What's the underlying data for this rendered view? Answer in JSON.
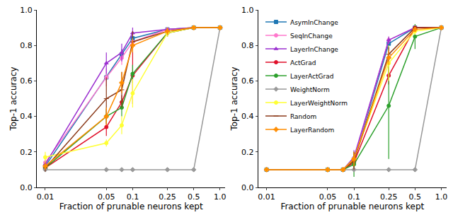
{
  "chart_data": [
    {
      "type": "line",
      "x_label": "Fraction of prunable neurons kept",
      "y_label": "Top-1 accuracy",
      "log": "x",
      "x": [
        0.01,
        0.05,
        0.075,
        0.1,
        0.25,
        0.5,
        1.0
      ],
      "xlim": [
        0.008,
        1.15
      ],
      "xticks": [
        0.01,
        0.05,
        0.1,
        0.25,
        0.5,
        {
          "value": 1,
          "label": "1.0"
        }
      ],
      "ylim": [
        0,
        1
      ],
      "yticks": [
        {
          "value": 0,
          "label": "0.0"
        },
        0.2,
        0.4,
        0.6,
        0.8,
        {
          "value": 1,
          "label": "1.0"
        }
      ],
      "series": [
        {
          "name": "AsymInChange",
          "color": "#1f77b4",
          "marker": "square",
          "values": [
            0.12,
            0.62,
            0.75,
            0.84,
            0.89,
            0.9,
            0.9
          ],
          "errors": [
            0.02,
            0.02,
            0.03,
            0.03,
            0.01,
            0.01,
            0
          ]
        },
        {
          "name": "SeqInChange",
          "color": "#ff77cc",
          "marker": "circle",
          "values": [
            0.14,
            0.62,
            0.73,
            0.82,
            0.89,
            0.9,
            0.9
          ],
          "errors": [
            0.02,
            0.05,
            0.04,
            0.03,
            0.01,
            0.01,
            0
          ]
        },
        {
          "name": "LayerInChange",
          "color": "#9b30d0",
          "marker": "triangle-up",
          "values": [
            0.13,
            0.7,
            0.76,
            0.87,
            0.89,
            0.9,
            0.9
          ],
          "errors": [
            0.02,
            0.06,
            0.05,
            0.03,
            0.01,
            0.01,
            0
          ]
        },
        {
          "name": "ActGrad",
          "color": "#e0102a",
          "marker": "circle",
          "values": [
            0.11,
            0.34,
            0.48,
            0.63,
            0.87,
            0.9,
            0.9
          ],
          "errors": [
            0.02,
            0.05,
            0.04,
            0.16,
            0.02,
            0.01,
            0
          ]
        },
        {
          "name": "LayerActGrad",
          "color": "#2ca02c",
          "marker": "circle",
          "values": [
            0.11,
            0.4,
            0.45,
            0.64,
            0.87,
            0.9,
            0.9
          ],
          "errors": [
            0.02,
            0.04,
            0.05,
            0.05,
            0.02,
            0.01,
            0
          ]
        },
        {
          "name": "WeightNorm",
          "color": "#999999",
          "marker": "diamond",
          "values": [
            0.1,
            0.1,
            0.1,
            0.1,
            0.1,
            0.1,
            0.9
          ],
          "errors": [
            0,
            0,
            0,
            0,
            0,
            0,
            0
          ]
        },
        {
          "name": "LayerWeightNorm",
          "color": "#ffff33",
          "marker": "circle",
          "values": [
            0.17,
            0.25,
            0.35,
            0.53,
            0.87,
            0.9,
            0.9
          ],
          "errors": [
            0.03,
            0.02,
            0.05,
            0.08,
            0.02,
            0.01,
            0
          ]
        },
        {
          "name": "Random",
          "color": "#8b3a1a",
          "marker": "line-ew",
          "values": [
            0.11,
            0.5,
            0.55,
            0.82,
            0.88,
            0.9,
            0.9
          ],
          "errors": [
            0.02,
            0.12,
            0.1,
            0.06,
            0.02,
            0.01,
            0
          ]
        },
        {
          "name": "LayerRandom",
          "color": "#ff8c00",
          "marker": "cross",
          "values": [
            0.12,
            0.4,
            0.59,
            0.8,
            0.88,
            0.9,
            0.9
          ],
          "errors": [
            0.02,
            0.05,
            0.06,
            0.04,
            0.02,
            0.01,
            0
          ]
        }
      ]
    },
    {
      "type": "line",
      "x_label": "Fraction of prunable neurons kept",
      "y_label": "Top-1 accuracy",
      "log": "x",
      "legend": "upper left",
      "x": [
        0.01,
        0.05,
        0.075,
        0.1,
        0.25,
        0.5,
        1.0
      ],
      "xlim": [
        0.008,
        1.15
      ],
      "xticks": [
        0.01,
        0.05,
        0.1,
        0.25,
        0.5,
        {
          "value": 1,
          "label": "1.0"
        }
      ],
      "ylim": [
        0,
        1
      ],
      "yticks": [
        {
          "value": 0,
          "label": "0.0"
        },
        0.2,
        0.4,
        0.6,
        0.8,
        {
          "value": 1,
          "label": "1.0"
        }
      ],
      "series": [
        {
          "name": "AsymInChange",
          "color": "#1f77b4",
          "marker": "square",
          "values": [
            0.1,
            0.1,
            0.1,
            0.15,
            0.81,
            0.9,
            0.9
          ],
          "errors": [
            0.01,
            0.01,
            0.01,
            0.04,
            0.03,
            0.01,
            0
          ]
        },
        {
          "name": "SeqInChange",
          "color": "#ff77cc",
          "marker": "circle",
          "values": [
            0.1,
            0.1,
            0.1,
            0.16,
            0.83,
            0.9,
            0.9
          ],
          "errors": [
            0.01,
            0.01,
            0.01,
            0.04,
            0.02,
            0.01,
            0
          ]
        },
        {
          "name": "LayerInChange",
          "color": "#9b30d0",
          "marker": "triangle-up",
          "values": [
            0.1,
            0.1,
            0.1,
            0.17,
            0.83,
            0.9,
            0.9
          ],
          "errors": [
            0.01,
            0.01,
            0.01,
            0.04,
            0.02,
            0.01,
            0
          ]
        },
        {
          "name": "ActGrad",
          "color": "#e0102a",
          "marker": "circle",
          "values": [
            0.1,
            0.1,
            0.1,
            0.14,
            0.63,
            0.9,
            0.9
          ],
          "errors": [
            0.01,
            0.01,
            0.01,
            0.05,
            0.05,
            0.01,
            0
          ]
        },
        {
          "name": "LayerActGrad",
          "color": "#2ca02c",
          "marker": "circle",
          "values": [
            0.1,
            0.1,
            0.1,
            0.13,
            0.46,
            0.85,
            0.9
          ],
          "errors": [
            0.01,
            0.01,
            0.01,
            0.07,
            0.3,
            0.07,
            0
          ]
        },
        {
          "name": "WeightNorm",
          "color": "#999999",
          "marker": "diamond",
          "values": [
            0.1,
            0.1,
            0.1,
            0.1,
            0.1,
            0.1,
            0.9
          ],
          "errors": [
            0,
            0,
            0,
            0,
            0,
            0,
            0
          ]
        },
        {
          "name": "LayerWeightNorm",
          "color": "#ffff33",
          "marker": "circle",
          "values": [
            0.1,
            0.1,
            0.1,
            0.16,
            0.7,
            0.88,
            0.9
          ],
          "errors": [
            0.01,
            0.01,
            0.01,
            0.04,
            0.1,
            0.02,
            0
          ]
        },
        {
          "name": "Random",
          "color": "#8b3a1a",
          "marker": "line-ew",
          "values": [
            0.1,
            0.1,
            0.1,
            0.15,
            0.75,
            0.9,
            0.9
          ],
          "errors": [
            0.01,
            0.01,
            0.01,
            0.05,
            0.04,
            0.01,
            0
          ]
        },
        {
          "name": "LayerRandom",
          "color": "#ff8c00",
          "marker": "cross",
          "values": [
            0.1,
            0.1,
            0.1,
            0.16,
            0.73,
            0.89,
            0.9
          ],
          "errors": [
            0.01,
            0.01,
            0.01,
            0.04,
            0.04,
            0.01,
            0
          ]
        }
      ]
    }
  ]
}
